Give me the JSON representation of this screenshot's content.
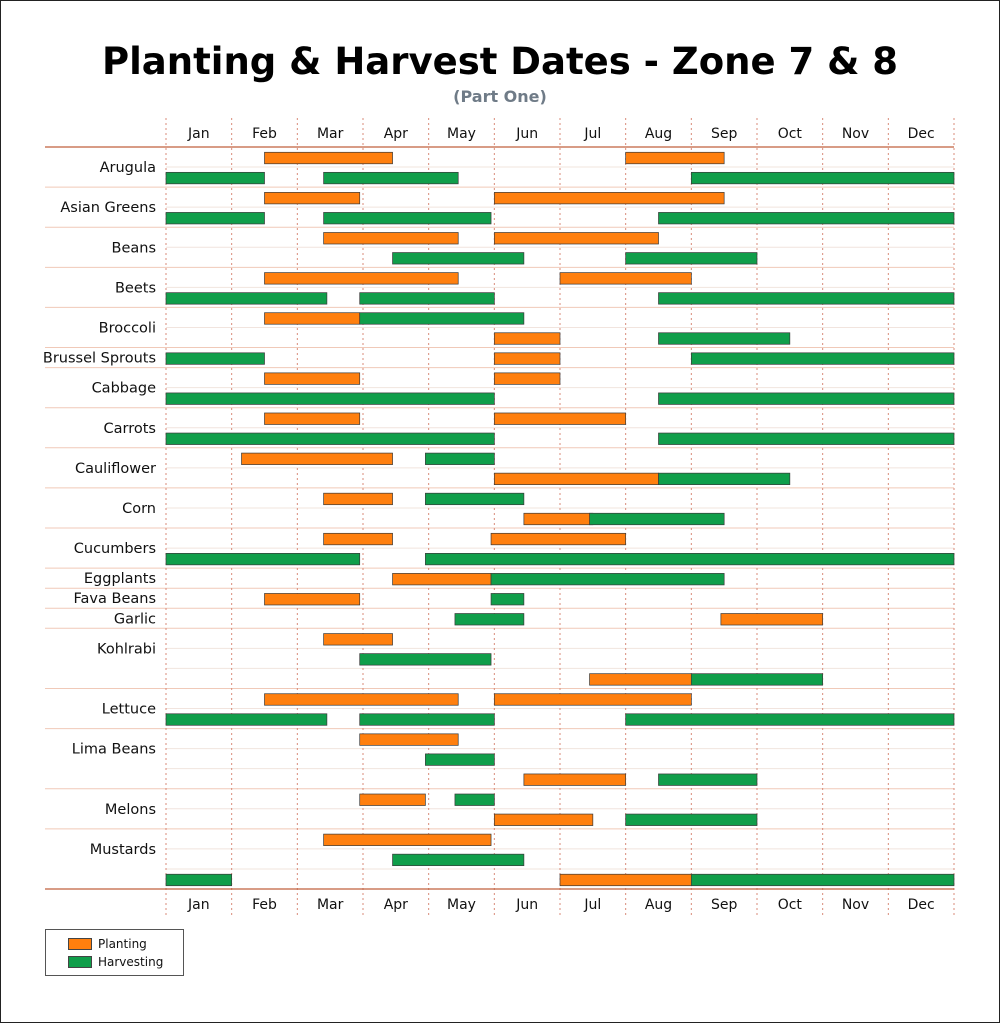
{
  "title": "Planting & Harvest Dates - Zone 7 & 8",
  "subtitle": "(Part One)",
  "colors": {
    "planting": "#ff7f0e",
    "harvesting": "#109e4a",
    "grid": "#d98b7a",
    "axis": "#c0603f"
  },
  "legend": {
    "planting": "Planting",
    "harvesting": "Harvesting"
  },
  "chart_data": {
    "type": "gantt",
    "title": "Planting & Harvest Dates - Zone 7 & 8",
    "subtitle": "(Part One)",
    "x_unit": "month (1.0 = start of Jan, 13.0 = end of Dec)",
    "xlim": [
      1,
      13
    ],
    "months": [
      "Jan",
      "Feb",
      "Mar",
      "Apr",
      "May",
      "Jun",
      "Jul",
      "Aug",
      "Sep",
      "Oct",
      "Nov",
      "Dec"
    ],
    "crops": [
      {
        "name": "Arugula",
        "lanes": 2,
        "bars": [
          {
            "type": "planting",
            "lane": 0,
            "start": 2.5,
            "end": 4.45
          },
          {
            "type": "planting",
            "lane": 0,
            "start": 8.0,
            "end": 9.5
          },
          {
            "type": "harvesting",
            "lane": 1,
            "start": 1.0,
            "end": 2.5
          },
          {
            "type": "harvesting",
            "lane": 1,
            "start": 3.4,
            "end": 5.45
          },
          {
            "type": "harvesting",
            "lane": 1,
            "start": 9.0,
            "end": 13.0
          }
        ]
      },
      {
        "name": "Asian Greens",
        "lanes": 2,
        "bars": [
          {
            "type": "planting",
            "lane": 0,
            "start": 2.5,
            "end": 3.95
          },
          {
            "type": "planting",
            "lane": 0,
            "start": 6.0,
            "end": 9.5
          },
          {
            "type": "harvesting",
            "lane": 1,
            "start": 1.0,
            "end": 2.5
          },
          {
            "type": "harvesting",
            "lane": 1,
            "start": 3.4,
            "end": 5.95
          },
          {
            "type": "harvesting",
            "lane": 1,
            "start": 8.5,
            "end": 13.0
          }
        ]
      },
      {
        "name": "Beans",
        "lanes": 2,
        "bars": [
          {
            "type": "planting",
            "lane": 0,
            "start": 3.4,
            "end": 5.45
          },
          {
            "type": "planting",
            "lane": 0,
            "start": 6.0,
            "end": 8.5
          },
          {
            "type": "harvesting",
            "lane": 1,
            "start": 4.45,
            "end": 6.45
          },
          {
            "type": "harvesting",
            "lane": 1,
            "start": 8.0,
            "end": 10.0
          }
        ]
      },
      {
        "name": "Beets",
        "lanes": 2,
        "bars": [
          {
            "type": "planting",
            "lane": 0,
            "start": 2.5,
            "end": 5.45
          },
          {
            "type": "planting",
            "lane": 0,
            "start": 7.0,
            "end": 9.0
          },
          {
            "type": "harvesting",
            "lane": 1,
            "start": 1.0,
            "end": 3.45
          },
          {
            "type": "harvesting",
            "lane": 1,
            "start": 3.95,
            "end": 6.0
          },
          {
            "type": "harvesting",
            "lane": 1,
            "start": 8.5,
            "end": 13.0
          }
        ]
      },
      {
        "name": "Broccoli",
        "lanes": 2,
        "bars": [
          {
            "type": "planting",
            "lane": 0,
            "start": 2.5,
            "end": 3.95
          },
          {
            "type": "harvesting",
            "lane": 0,
            "start": 3.95,
            "end": 6.45
          },
          {
            "type": "planting",
            "lane": 1,
            "start": 6.0,
            "end": 7.0
          },
          {
            "type": "harvesting",
            "lane": 1,
            "start": 8.5,
            "end": 10.5
          }
        ]
      },
      {
        "name": "Brussel Sprouts",
        "lanes": 1,
        "bars": [
          {
            "type": "harvesting",
            "lane": 0,
            "start": 1.0,
            "end": 2.5
          },
          {
            "type": "planting",
            "lane": 0,
            "start": 6.0,
            "end": 7.0
          },
          {
            "type": "harvesting",
            "lane": 0,
            "start": 9.0,
            "end": 13.0
          }
        ]
      },
      {
        "name": "Cabbage",
        "lanes": 2,
        "bars": [
          {
            "type": "planting",
            "lane": 0,
            "start": 2.5,
            "end": 3.95
          },
          {
            "type": "planting",
            "lane": 0,
            "start": 6.0,
            "end": 7.0
          },
          {
            "type": "harvesting",
            "lane": 1,
            "start": 1.0,
            "end": 6.0
          },
          {
            "type": "harvesting",
            "lane": 1,
            "start": 8.5,
            "end": 13.0
          }
        ]
      },
      {
        "name": "Carrots",
        "lanes": 2,
        "bars": [
          {
            "type": "planting",
            "lane": 0,
            "start": 2.5,
            "end": 3.95
          },
          {
            "type": "planting",
            "lane": 0,
            "start": 6.0,
            "end": 8.0
          },
          {
            "type": "harvesting",
            "lane": 1,
            "start": 1.0,
            "end": 6.0
          },
          {
            "type": "harvesting",
            "lane": 1,
            "start": 8.5,
            "end": 13.0
          }
        ]
      },
      {
        "name": "Cauliflower",
        "lanes": 2,
        "bars": [
          {
            "type": "planting",
            "lane": 0,
            "start": 2.15,
            "end": 4.45
          },
          {
            "type": "harvesting",
            "lane": 0,
            "start": 4.95,
            "end": 6.0
          },
          {
            "type": "planting",
            "lane": 1,
            "start": 6.0,
            "end": 8.5
          },
          {
            "type": "harvesting",
            "lane": 1,
            "start": 8.5,
            "end": 10.5
          }
        ]
      },
      {
        "name": "Corn",
        "lanes": 2,
        "bars": [
          {
            "type": "planting",
            "lane": 0,
            "start": 3.4,
            "end": 4.45
          },
          {
            "type": "harvesting",
            "lane": 0,
            "start": 4.95,
            "end": 6.45
          },
          {
            "type": "planting",
            "lane": 1,
            "start": 6.45,
            "end": 7.5
          },
          {
            "type": "harvesting",
            "lane": 1,
            "start": 7.45,
            "end": 9.5
          }
        ]
      },
      {
        "name": "Cucumbers",
        "lanes": 2,
        "bars": [
          {
            "type": "planting",
            "lane": 0,
            "start": 3.4,
            "end": 4.45
          },
          {
            "type": "planting",
            "lane": 0,
            "start": 5.95,
            "end": 8.0
          },
          {
            "type": "harvesting",
            "lane": 1,
            "start": 1.0,
            "end": 3.95
          },
          {
            "type": "harvesting",
            "lane": 1,
            "start": 4.95,
            "end": 13.0
          }
        ]
      },
      {
        "name": "Eggplants",
        "lanes": 1,
        "bars": [
          {
            "type": "planting",
            "lane": 0,
            "start": 4.45,
            "end": 5.95
          },
          {
            "type": "harvesting",
            "lane": 0,
            "start": 5.95,
            "end": 9.5
          }
        ]
      },
      {
        "name": "Fava Beans",
        "lanes": 1,
        "bars": [
          {
            "type": "planting",
            "lane": 0,
            "start": 2.5,
            "end": 3.95
          },
          {
            "type": "harvesting",
            "lane": 0,
            "start": 5.95,
            "end": 6.45
          }
        ]
      },
      {
        "name": "Garlic",
        "lanes": 1,
        "bars": [
          {
            "type": "harvesting",
            "lane": 0,
            "start": 5.4,
            "end": 6.45
          },
          {
            "type": "planting",
            "lane": 0,
            "start": 9.45,
            "end": 11.0
          }
        ]
      },
      {
        "name": "Kohlrabi",
        "lanes": 3,
        "bars": [
          {
            "type": "planting",
            "lane": 0,
            "start": 3.4,
            "end": 4.45
          },
          {
            "type": "harvesting",
            "lane": 1,
            "start": 3.95,
            "end": 5.95
          },
          {
            "type": "planting",
            "lane": 2,
            "start": 7.45,
            "end": 9.0
          },
          {
            "type": "harvesting",
            "lane": 2,
            "start": 9.0,
            "end": 11.0
          }
        ]
      },
      {
        "name": "Lettuce",
        "lanes": 2,
        "bars": [
          {
            "type": "planting",
            "lane": 0,
            "start": 2.5,
            "end": 5.45
          },
          {
            "type": "planting",
            "lane": 0,
            "start": 6.0,
            "end": 9.0
          },
          {
            "type": "harvesting",
            "lane": 1,
            "start": 1.0,
            "end": 3.45
          },
          {
            "type": "harvesting",
            "lane": 1,
            "start": 3.95,
            "end": 6.0
          },
          {
            "type": "harvesting",
            "lane": 1,
            "start": 8.0,
            "end": 13.0
          }
        ]
      },
      {
        "name": "Lima Beans",
        "lanes": 3,
        "bars": [
          {
            "type": "planting",
            "lane": 0,
            "start": 3.95,
            "end": 5.45
          },
          {
            "type": "harvesting",
            "lane": 1,
            "start": 4.95,
            "end": 6.0
          },
          {
            "type": "planting",
            "lane": 2,
            "start": 6.45,
            "end": 8.0
          },
          {
            "type": "harvesting",
            "lane": 2,
            "start": 8.5,
            "end": 10.0
          }
        ]
      },
      {
        "name": "Melons",
        "lanes": 2,
        "bars": [
          {
            "type": "planting",
            "lane": 0,
            "start": 3.95,
            "end": 4.95
          },
          {
            "type": "harvesting",
            "lane": 0,
            "start": 5.4,
            "end": 6.0
          },
          {
            "type": "planting",
            "lane": 1,
            "start": 6.0,
            "end": 7.5
          },
          {
            "type": "harvesting",
            "lane": 1,
            "start": 8.0,
            "end": 10.0
          }
        ]
      },
      {
        "name": "Mustards",
        "lanes": 3,
        "bars": [
          {
            "type": "planting",
            "lane": 0,
            "start": 3.4,
            "end": 5.95
          },
          {
            "type": "harvesting",
            "lane": 1,
            "start": 4.45,
            "end": 6.45
          },
          {
            "type": "harvesting",
            "lane": 2,
            "start": 1.0,
            "end": 2.0
          },
          {
            "type": "planting",
            "lane": 2,
            "start": 7.0,
            "end": 9.0
          },
          {
            "type": "harvesting",
            "lane": 2,
            "start": 9.0,
            "end": 13.0
          }
        ]
      }
    ]
  }
}
